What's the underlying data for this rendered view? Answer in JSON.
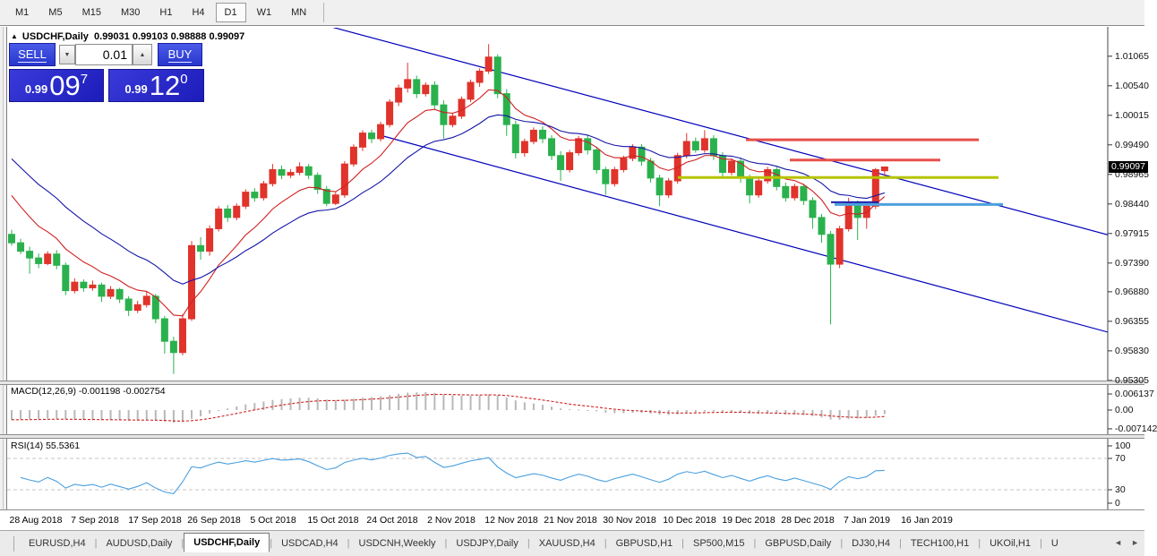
{
  "toolbar": {
    "timeframes": [
      {
        "label": "M1",
        "active": false
      },
      {
        "label": "M5",
        "active": false
      },
      {
        "label": "M15",
        "active": false
      },
      {
        "label": "M30",
        "active": false
      },
      {
        "label": "H1",
        "active": false
      },
      {
        "label": "H4",
        "active": false
      },
      {
        "label": "D1",
        "active": true
      },
      {
        "label": "W1",
        "active": false
      },
      {
        "label": "MN",
        "active": false
      }
    ]
  },
  "chart_header": {
    "collapse_icon": "▲",
    "symbol_title": "USDCHF,Daily",
    "ohlc_text": "0.99031 0.99103 0.98888 0.99097"
  },
  "trade_panel": {
    "sell_label": "SELL",
    "buy_label": "BUY",
    "volume": "0.01",
    "down_icon": "▼",
    "up_icon": "▲",
    "sell_price": {
      "small": "0.99",
      "big": "09",
      "sup": "7"
    },
    "buy_price": {
      "small": "0.99",
      "big": "12",
      "sup": "0"
    }
  },
  "price_axis": {
    "ticks": [
      "1.01065",
      "1.00540",
      "1.00015",
      "0.99490",
      "0.98965",
      "0.98440",
      "0.97915",
      "0.97390",
      "0.96880",
      "0.96355",
      "0.95830",
      "0.95305"
    ],
    "current_price": "0.99097"
  },
  "macd_panel": {
    "label": "MACD(12,26,9) -0.001198 -0.002754",
    "ticks": [
      "0.006137",
      "0.00",
      "-0.007142"
    ]
  },
  "rsi_panel": {
    "label": "RSI(14) 55.5361",
    "ticks": [
      "100",
      "70",
      "30",
      "0"
    ],
    "levels": [
      70,
      30
    ]
  },
  "date_axis": {
    "labels": [
      "28 Aug 2018",
      "7 Sep 2018",
      "17 Sep 2018",
      "26 Sep 2018",
      "5 Oct 2018",
      "15 Oct 2018",
      "24 Oct 2018",
      "2 Nov 2018",
      "12 Nov 2018",
      "21 Nov 2018",
      "30 Nov 2018",
      "10 Dec 2018",
      "19 Dec 2018",
      "28 Dec 2018",
      "7 Jan 2019",
      "16 Jan 2019"
    ],
    "x": [
      40,
      106,
      173,
      239,
      305,
      372,
      438,
      504,
      571,
      637,
      703,
      770,
      836,
      902,
      968,
      1035
    ]
  },
  "tabs": {
    "items": [
      {
        "label": "EURUSD,H4",
        "active": false
      },
      {
        "label": "AUDUSD,Daily",
        "active": false
      },
      {
        "label": "USDCHF,Daily",
        "active": true
      },
      {
        "label": "USDCAD,H4",
        "active": false
      },
      {
        "label": "USDCNH,Weekly",
        "active": false
      },
      {
        "label": "USDJPY,Daily",
        "active": false
      },
      {
        "label": "XAUUSD,H4",
        "active": false
      },
      {
        "label": "GBPUSD,H1",
        "active": false
      },
      {
        "label": "SP500,M15",
        "active": false
      },
      {
        "label": "GBPUSD,Daily",
        "active": false
      },
      {
        "label": "DJ30,H4",
        "active": false
      },
      {
        "label": "TECH100,H1",
        "active": false
      },
      {
        "label": "UKOil,H1",
        "active": false
      },
      {
        "label": "U",
        "active": false
      }
    ],
    "left_arrow": "◄",
    "right_arrow": "►"
  },
  "chart_data": {
    "type": "candlestick",
    "symbol": "USDCHF",
    "timeframe": "Daily",
    "last_ohlc": {
      "open": 0.99031,
      "high": 0.99103,
      "low": 0.98888,
      "close": 0.99097
    },
    "ylim": [
      0.9532,
      1.0159
    ],
    "colors": {
      "bull": "#e0332b",
      "bear": "#2ab14d",
      "ma_fast": "#d02020",
      "ma_slow": "#1515a8",
      "trendline": "#0000bb",
      "macd_hist": "#b8b8b8",
      "macd_signal": "#d02020",
      "rsi": "#4aa0e0"
    },
    "indicators": {
      "ma_fast_period": 9,
      "ma_slow_period": 20,
      "macd": [
        12,
        26,
        9
      ],
      "rsi_period": 14
    },
    "candles": [
      [
        0.979,
        0.9798,
        0.977,
        0.9775
      ],
      [
        0.9775,
        0.9782,
        0.9755,
        0.976
      ],
      [
        0.976,
        0.9768,
        0.972,
        0.9748
      ],
      [
        0.9748,
        0.9756,
        0.973,
        0.9738
      ],
      [
        0.9738,
        0.976,
        0.9735,
        0.9755
      ],
      [
        0.9755,
        0.9762,
        0.9728,
        0.9735
      ],
      [
        0.9735,
        0.974,
        0.9682,
        0.969
      ],
      [
        0.969,
        0.9712,
        0.9685,
        0.9705
      ],
      [
        0.9705,
        0.971,
        0.9688,
        0.9695
      ],
      [
        0.9695,
        0.9708,
        0.969,
        0.97
      ],
      [
        0.97,
        0.9704,
        0.967,
        0.968
      ],
      [
        0.968,
        0.9698,
        0.9675,
        0.9692
      ],
      [
        0.9692,
        0.9695,
        0.9668,
        0.9675
      ],
      [
        0.9675,
        0.968,
        0.9645,
        0.9655
      ],
      [
        0.9655,
        0.9672,
        0.965,
        0.9665
      ],
      [
        0.9665,
        0.9688,
        0.966,
        0.968
      ],
      [
        0.968,
        0.9684,
        0.9632,
        0.964
      ],
      [
        0.964,
        0.9645,
        0.9578,
        0.96
      ],
      [
        0.96,
        0.9608,
        0.9542,
        0.958
      ],
      [
        0.958,
        0.9648,
        0.9575,
        0.964
      ],
      [
        0.964,
        0.9778,
        0.9636,
        0.977
      ],
      [
        0.977,
        0.9785,
        0.9745,
        0.976
      ],
      [
        0.976,
        0.9806,
        0.9752,
        0.98
      ],
      [
        0.98,
        0.984,
        0.9795,
        0.9835
      ],
      [
        0.9835,
        0.9842,
        0.9812,
        0.982
      ],
      [
        0.982,
        0.9845,
        0.9815,
        0.984
      ],
      [
        0.984,
        0.987,
        0.9835,
        0.9865
      ],
      [
        0.9865,
        0.9872,
        0.9848,
        0.9855
      ],
      [
        0.9855,
        0.9885,
        0.985,
        0.988
      ],
      [
        0.988,
        0.9915,
        0.9875,
        0.9905
      ],
      [
        0.9905,
        0.9912,
        0.9888,
        0.9895
      ],
      [
        0.9895,
        0.9906,
        0.989,
        0.99
      ],
      [
        0.99,
        0.9918,
        0.9895,
        0.991
      ],
      [
        0.991,
        0.9915,
        0.9888,
        0.9895
      ],
      [
        0.9895,
        0.99,
        0.9862,
        0.987
      ],
      [
        0.987,
        0.9876,
        0.984,
        0.9845
      ],
      [
        0.9845,
        0.9865,
        0.9842,
        0.986
      ],
      [
        0.986,
        0.992,
        0.9855,
        0.9915
      ],
      [
        0.9915,
        0.995,
        0.991,
        0.9945
      ],
      [
        0.9945,
        0.9975,
        0.9938,
        0.997
      ],
      [
        0.997,
        0.9976,
        0.9952,
        0.996
      ],
      [
        0.996,
        0.999,
        0.9955,
        0.9985
      ],
      [
        0.9985,
        1.003,
        0.998,
        1.0025
      ],
      [
        1.0025,
        1.0056,
        1.0018,
        1.005
      ],
      [
        1.005,
        1.0095,
        1.0042,
        1.0065
      ],
      [
        1.0065,
        1.0072,
        1.0032,
        1.004
      ],
      [
        1.004,
        1.006,
        1.0035,
        1.0055
      ],
      [
        1.0055,
        1.0062,
        1.0012,
        1.002
      ],
      [
        1.002,
        1.0028,
        0.996,
        0.9985
      ],
      [
        0.9985,
        1.0005,
        0.998,
        1.0
      ],
      [
        1.0,
        1.0035,
        0.9995,
        1.003
      ],
      [
        1.003,
        1.0065,
        1.0025,
        1.006
      ],
      [
        1.006,
        1.0085,
        1.0052,
        1.008
      ],
      [
        1.008,
        1.0128,
        1.0075,
        1.0105
      ],
      [
        1.0105,
        1.011,
        1.0032,
        1.004
      ],
      [
        1.004,
        1.0048,
        0.9965,
        0.9985
      ],
      [
        0.9985,
        0.9992,
        0.9925,
        0.9935
      ],
      [
        0.9935,
        0.996,
        0.9928,
        0.9955
      ],
      [
        0.9955,
        0.998,
        0.995,
        0.9975
      ],
      [
        0.9975,
        0.9982,
        0.9952,
        0.996
      ],
      [
        0.996,
        0.9966,
        0.9922,
        0.993
      ],
      [
        0.993,
        0.9938,
        0.9885,
        0.9905
      ],
      [
        0.9905,
        0.994,
        0.99,
        0.9935
      ],
      [
        0.9935,
        0.9965,
        0.993,
        0.996
      ],
      [
        0.996,
        0.9966,
        0.9932,
        0.994
      ],
      [
        0.994,
        0.9946,
        0.9898,
        0.9905
      ],
      [
        0.9905,
        0.991,
        0.986,
        0.988
      ],
      [
        0.988,
        0.991,
        0.9875,
        0.9905
      ],
      [
        0.9905,
        0.993,
        0.99,
        0.9925
      ],
      [
        0.9925,
        0.995,
        0.992,
        0.9945
      ],
      [
        0.9945,
        0.995,
        0.9912,
        0.992
      ],
      [
        0.992,
        0.9926,
        0.9882,
        0.989
      ],
      [
        0.989,
        0.9896,
        0.984,
        0.986
      ],
      [
        0.986,
        0.989,
        0.9855,
        0.9885
      ],
      [
        0.9885,
        0.9935,
        0.988,
        0.993
      ],
      [
        0.993,
        0.997,
        0.9925,
        0.9955
      ],
      [
        0.9955,
        0.9962,
        0.9935,
        0.994
      ],
      [
        0.994,
        0.9975,
        0.9935,
        0.996
      ],
      [
        0.996,
        0.9966,
        0.9922,
        0.993
      ],
      [
        0.993,
        0.9936,
        0.9892,
        0.99
      ],
      [
        0.99,
        0.9925,
        0.9895,
        0.992
      ],
      [
        0.992,
        0.9926,
        0.9882,
        0.989
      ],
      [
        0.989,
        0.9896,
        0.9845,
        0.986
      ],
      [
        0.986,
        0.989,
        0.9855,
        0.9885
      ],
      [
        0.9885,
        0.991,
        0.988,
        0.9905
      ],
      [
        0.9905,
        0.991,
        0.9868,
        0.9875
      ],
      [
        0.9875,
        0.9882,
        0.9848,
        0.9855
      ],
      [
        0.9855,
        0.988,
        0.985,
        0.9875
      ],
      [
        0.9875,
        0.988,
        0.9842,
        0.985
      ],
      [
        0.985,
        0.9856,
        0.98,
        0.982
      ],
      [
        0.982,
        0.9826,
        0.9775,
        0.979
      ],
      [
        0.979,
        0.9796,
        0.963,
        0.9737
      ],
      [
        0.9737,
        0.9805,
        0.973,
        0.98
      ],
      [
        0.98,
        0.9855,
        0.9795,
        0.9845
      ],
      [
        0.9845,
        0.985,
        0.978,
        0.982
      ],
      [
        0.982,
        0.9846,
        0.98,
        0.984
      ],
      [
        0.984,
        0.9908,
        0.9835,
        0.9905
      ],
      [
        0.99031,
        0.99103,
        0.98888,
        0.99097
      ]
    ],
    "drawings": {
      "trendlines": [
        {
          "x1": 370,
          "price1": 1.01586,
          "x2": 1240,
          "price2": 0.9788
        },
        {
          "x1": 428,
          "price1": 0.99646,
          "x2": 1240,
          "price2": 0.9615
        }
      ],
      "hlines": [
        {
          "price": 0.9958,
          "x1": 833,
          "x2": 1093,
          "color": "#e8504a",
          "width": 3
        },
        {
          "price": 0.9922,
          "x1": 882,
          "x2": 1050,
          "color": "#e8504a",
          "width": 3
        },
        {
          "price": 0.9891,
          "x1": 757,
          "x2": 1115,
          "color": "#b7c400",
          "width": 3
        },
        {
          "price": 0.9847,
          "x1": 928,
          "x2": 981,
          "color": "#1a1aae",
          "width": 2
        },
        {
          "price": 0.9843,
          "x1": 932,
          "x2": 1120,
          "color": "#4da0dc",
          "width": 3
        }
      ]
    }
  }
}
